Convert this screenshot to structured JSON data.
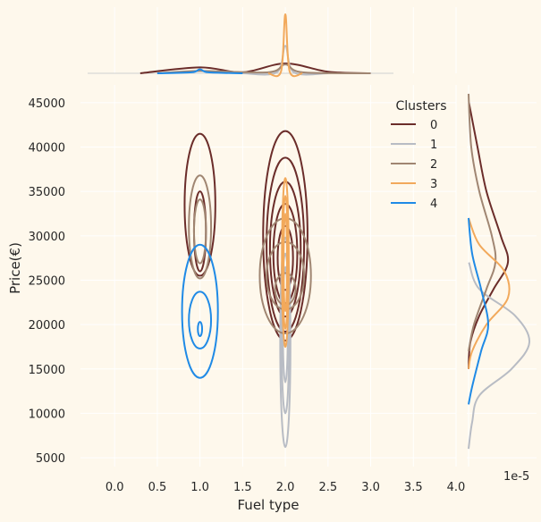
{
  "figure": {
    "background": "#fef8ec",
    "grid_color": "#ffffff"
  },
  "chart_data": {
    "type": "kde_joint",
    "xlabel": "Fuel type",
    "ylabel": "Price(€)",
    "x_ticks": [
      "0.0",
      "0.5",
      "1.0",
      "1.5",
      "2.0",
      "2.5",
      "3.0",
      "3.5",
      "4.0"
    ],
    "x_tick_values": [
      0,
      0.5,
      1,
      1.5,
      2,
      2.5,
      3,
      3.5,
      4
    ],
    "y_ticks": [
      "5000",
      "10000",
      "15000",
      "20000",
      "25000",
      "30000",
      "35000",
      "40000",
      "45000"
    ],
    "y_tick_values": [
      5000,
      10000,
      15000,
      20000,
      25000,
      30000,
      35000,
      40000,
      45000
    ],
    "xlim": [
      -0.4,
      4.0
    ],
    "ylim": [
      4000,
      47000
    ],
    "marginal_y_scale_label": "1e-5",
    "grid": true,
    "legend": {
      "title": "Clusters",
      "placement": "top-right",
      "entries": [
        {
          "label": "0",
          "color": "#6b2d2a"
        },
        {
          "label": "1",
          "color": "#b8bcc4"
        },
        {
          "label": "2",
          "color": "#a08672"
        },
        {
          "label": "3",
          "color": "#f2a95b"
        },
        {
          "label": "4",
          "color": "#1f8ae6"
        }
      ]
    },
    "series": [
      {
        "name": "0",
        "color": "#6b2d2a",
        "contours": [
          {
            "cx": 1.0,
            "cy": 33500,
            "rx": 0.18,
            "ry": 8000
          },
          {
            "cx": 1.0,
            "cy": 30500,
            "rx": 0.07,
            "ry": 4500
          },
          {
            "cx": 2.0,
            "cy": 30000,
            "rx": 0.26,
            "ry": 11800
          },
          {
            "cx": 2.0,
            "cy": 29000,
            "rx": 0.22,
            "ry": 9800
          },
          {
            "cx": 2.0,
            "cy": 28500,
            "rx": 0.18,
            "ry": 7600
          },
          {
            "cx": 2.0,
            "cy": 28000,
            "rx": 0.14,
            "ry": 5600
          },
          {
            "cx": 2.0,
            "cy": 27500,
            "rx": 0.09,
            "ry": 3600
          }
        ],
        "marginal_x": [
          [
            0.3,
            0.0
          ],
          [
            1.0,
            0.3
          ],
          [
            1.5,
            0.05
          ],
          [
            2.0,
            0.5
          ],
          [
            2.5,
            0.08
          ],
          [
            3.0,
            0.0
          ]
        ],
        "marginal_y": [
          [
            45000,
            0.02
          ],
          [
            40000,
            0.5
          ],
          [
            35000,
            1.0
          ],
          [
            30000,
            1.8
          ],
          [
            27000,
            2.2
          ],
          [
            24000,
            1.4
          ],
          [
            21000,
            0.6
          ],
          [
            18000,
            0.1
          ],
          [
            15000,
            0.0
          ]
        ]
      },
      {
        "name": "1",
        "color": "#b8bcc4",
        "contours": [
          {
            "cx": 2.0,
            "cy": 18000,
            "rx": 0.06,
            "ry": 11800
          },
          {
            "cx": 2.0,
            "cy": 19000,
            "rx": 0.045,
            "ry": 9000
          },
          {
            "cx": 2.0,
            "cy": 20000,
            "rx": 0.03,
            "ry": 6500
          }
        ],
        "marginal_x": [
          [
            1.5,
            0.0
          ],
          [
            1.9,
            0.05
          ],
          [
            2.0,
            1.4
          ],
          [
            2.1,
            0.05
          ],
          [
            2.5,
            0.0
          ]
        ],
        "marginal_y": [
          [
            27000,
            0.02
          ],
          [
            24000,
            0.6
          ],
          [
            21000,
            2.6
          ],
          [
            18000,
            3.4
          ],
          [
            15000,
            2.4
          ],
          [
            12000,
            0.6
          ],
          [
            9000,
            0.2
          ],
          [
            6000,
            0.0
          ]
        ]
      },
      {
        "name": "2",
        "color": "#a08672",
        "contours": [
          {
            "cx": 1.0,
            "cy": 31000,
            "rx": 0.13,
            "ry": 5800
          },
          {
            "cx": 1.0,
            "cy": 30500,
            "rx": 0.07,
            "ry": 3600
          },
          {
            "cx": 2.0,
            "cy": 25500,
            "rx": 0.3,
            "ry": 6500
          },
          {
            "cx": 2.0,
            "cy": 25500,
            "rx": 0.22,
            "ry": 3800
          },
          {
            "cx": 2.0,
            "cy": 24000,
            "rx": 0.12,
            "ry": 1800
          }
        ],
        "marginal_x": [
          [
            0.5,
            0.0
          ],
          [
            1.0,
            0.12
          ],
          [
            1.8,
            0.05
          ],
          [
            2.0,
            0.45
          ],
          [
            2.2,
            0.05
          ],
          [
            3.0,
            0.0
          ]
        ],
        "marginal_y": [
          [
            46000,
            0.0
          ],
          [
            40000,
            0.15
          ],
          [
            35000,
            0.6
          ],
          [
            30000,
            1.3
          ],
          [
            27000,
            1.5
          ],
          [
            24000,
            1.0
          ],
          [
            20000,
            0.3
          ],
          [
            17000,
            0.0
          ]
        ]
      },
      {
        "name": "3",
        "color": "#f2a95b",
        "contours": [
          {
            "cx": 2.0,
            "cy": 27000,
            "rx": 0.04,
            "ry": 9500
          },
          {
            "cx": 2.0,
            "cy": 27000,
            "rx": 0.03,
            "ry": 7500
          },
          {
            "cx": 2.0,
            "cy": 27000,
            "rx": 0.02,
            "ry": 5500
          }
        ],
        "marginal_x": [
          [
            1.8,
            0.0
          ],
          [
            1.95,
            0.1
          ],
          [
            2.0,
            3.0
          ],
          [
            2.05,
            0.1
          ],
          [
            2.2,
            0.0
          ]
        ],
        "marginal_y": [
          [
            32000,
            0.0
          ],
          [
            29000,
            0.6
          ],
          [
            26000,
            2.0
          ],
          [
            23000,
            2.2
          ],
          [
            20000,
            1.0
          ],
          [
            17000,
            0.2
          ],
          [
            15000,
            0.0
          ]
        ]
      },
      {
        "name": "4",
        "color": "#1f8ae6",
        "contours": [
          {
            "cx": 1.0,
            "cy": 21500,
            "rx": 0.21,
            "ry": 7500
          },
          {
            "cx": 1.0,
            "cy": 20500,
            "rx": 0.13,
            "ry": 3200
          },
          {
            "cx": 1.0,
            "cy": 19500,
            "rx": 0.025,
            "ry": 800
          }
        ],
        "marginal_x": [
          [
            0.5,
            0.0
          ],
          [
            0.9,
            0.05
          ],
          [
            1.0,
            0.2
          ],
          [
            1.1,
            0.05
          ],
          [
            1.5,
            0.0
          ]
        ],
        "marginal_y": [
          [
            32000,
            0.0
          ],
          [
            28000,
            0.2
          ],
          [
            24000,
            0.7
          ],
          [
            20000,
            1.1
          ],
          [
            17000,
            0.7
          ],
          [
            13000,
            0.2
          ],
          [
            11000,
            0.0
          ]
        ]
      }
    ]
  }
}
